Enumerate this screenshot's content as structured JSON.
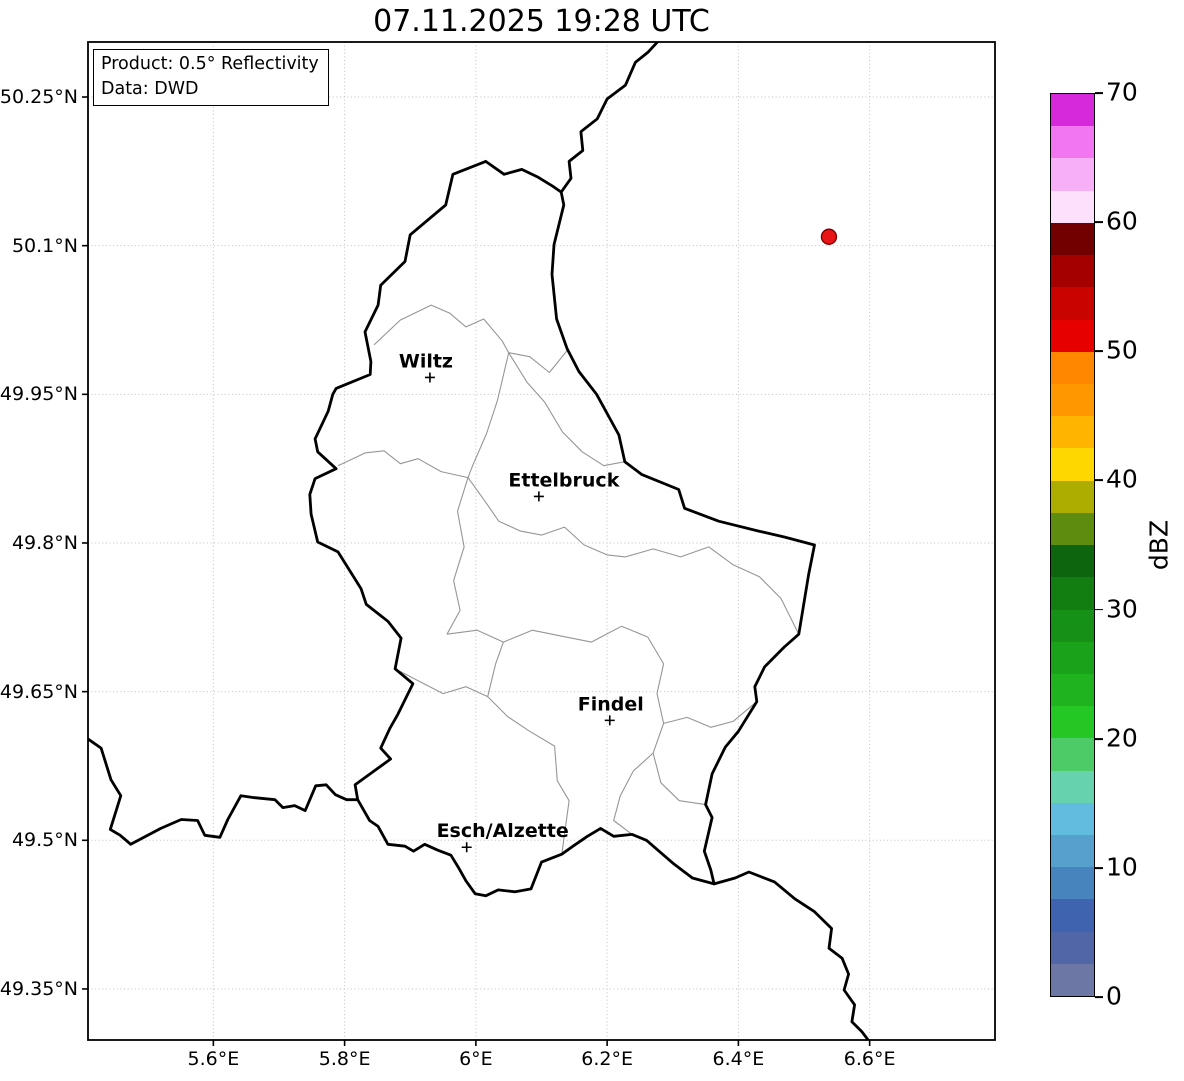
{
  "title": "07.11.2025 19:28 UTC",
  "info_box": {
    "line1": "Product: 0.5° Reflectivity",
    "line2": "Data: DWD"
  },
  "axes": {
    "x_ticks": [
      {
        "value": 5.6,
        "label": "5.6°E"
      },
      {
        "value": 5.8,
        "label": "5.8°E"
      },
      {
        "value": 6.0,
        "label": "6°E"
      },
      {
        "value": 6.2,
        "label": "6.2°E"
      },
      {
        "value": 6.4,
        "label": "6.4°E"
      },
      {
        "value": 6.6,
        "label": "6.6°E"
      }
    ],
    "y_ticks": [
      {
        "value": 50.25,
        "label": "50.25°N"
      },
      {
        "value": 50.1,
        "label": "50.1°N"
      },
      {
        "value": 49.95,
        "label": "49.95°N"
      },
      {
        "value": 49.8,
        "label": "49.8°N"
      },
      {
        "value": 49.65,
        "label": "49.65°N"
      },
      {
        "value": 49.5,
        "label": "49.5°N"
      },
      {
        "value": 49.35,
        "label": "49.35°N"
      }
    ]
  },
  "map": {
    "extent": {
      "lon_min": 5.409,
      "lon_max": 6.791,
      "lat_min": 49.2985,
      "lat_max": 50.3055
    },
    "grid_color": "#c0c0c0",
    "country_border_color": "#000000",
    "district_border_color": "#969696",
    "thick_borders": [
      [
        [
          6.015,
          50.185
        ],
        [
          6.043,
          50.172
        ],
        [
          6.07,
          50.177
        ],
        [
          6.095,
          50.169
        ],
        [
          6.117,
          50.16
        ],
        [
          6.13,
          50.154
        ],
        [
          6.134,
          50.141
        ],
        [
          6.119,
          50.101
        ],
        [
          6.116,
          50.071
        ],
        [
          6.123,
          50.026
        ],
        [
          6.139,
          49.996
        ],
        [
          6.157,
          49.973
        ],
        [
          6.184,
          49.95
        ],
        [
          6.218,
          49.909
        ],
        [
          6.227,
          49.882
        ],
        [
          6.253,
          49.869
        ],
        [
          6.309,
          49.854
        ],
        [
          6.318,
          49.835
        ],
        [
          6.37,
          49.822
        ],
        [
          6.431,
          49.812
        ],
        [
          6.47,
          49.806
        ],
        [
          6.516,
          49.798
        ],
        [
          6.507,
          49.768
        ],
        [
          6.492,
          49.708
        ],
        [
          6.47,
          49.695
        ],
        [
          6.44,
          49.675
        ],
        [
          6.425,
          49.655
        ],
        [
          6.428,
          49.64
        ],
        [
          6.4,
          49.61
        ],
        [
          6.38,
          49.594
        ],
        [
          6.36,
          49.567
        ],
        [
          6.35,
          49.536
        ],
        [
          6.36,
          49.523
        ],
        [
          6.348,
          49.489
        ],
        [
          6.358,
          49.47
        ],
        [
          6.363,
          49.456
        ],
        [
          6.33,
          49.462
        ],
        [
          6.3,
          49.477
        ],
        [
          6.26,
          49.5
        ],
        [
          6.238,
          49.506
        ],
        [
          6.21,
          49.504
        ],
        [
          6.19,
          49.512
        ],
        [
          6.17,
          49.504
        ],
        [
          6.148,
          49.494
        ],
        [
          6.131,
          49.486
        ],
        [
          6.1,
          49.478
        ],
        [
          6.084,
          49.451
        ],
        [
          6.06,
          49.448
        ],
        [
          6.034,
          49.45
        ],
        [
          6.015,
          49.444
        ],
        [
          5.999,
          49.446
        ],
        [
          5.985,
          49.459
        ],
        [
          5.973,
          49.473
        ],
        [
          5.962,
          49.485
        ],
        [
          5.942,
          49.49
        ],
        [
          5.922,
          49.496
        ],
        [
          5.905,
          49.489
        ],
        [
          5.892,
          49.494
        ],
        [
          5.866,
          49.496
        ],
        [
          5.851,
          49.514
        ],
        [
          5.838,
          49.52
        ],
        [
          5.82,
          49.541
        ],
        [
          5.816,
          49.556
        ],
        [
          5.87,
          49.582
        ],
        [
          5.855,
          49.593
        ],
        [
          5.869,
          49.613
        ],
        [
          5.881,
          49.627
        ],
        [
          5.904,
          49.658
        ],
        [
          5.877,
          49.673
        ],
        [
          5.886,
          49.704
        ],
        [
          5.866,
          49.721
        ],
        [
          5.833,
          49.738
        ],
        [
          5.825,
          49.754
        ],
        [
          5.79,
          49.791
        ],
        [
          5.759,
          49.801
        ],
        [
          5.749,
          49.829
        ],
        [
          5.747,
          49.849
        ],
        [
          5.755,
          49.865
        ],
        [
          5.787,
          49.875
        ],
        [
          5.759,
          49.892
        ],
        [
          5.755,
          49.905
        ],
        [
          5.775,
          49.933
        ],
        [
          5.782,
          49.95
        ],
        [
          5.787,
          49.956
        ],
        [
          5.839,
          49.97
        ],
        [
          5.84,
          49.983
        ],
        [
          5.831,
          50.013
        ],
        [
          5.851,
          50.04
        ],
        [
          5.855,
          50.06
        ],
        [
          5.892,
          50.084
        ],
        [
          5.9,
          50.111
        ],
        [
          5.954,
          50.141
        ],
        [
          5.965,
          50.172
        ],
        [
          6.015,
          50.185
        ]
      ],
      [
        [
          6.13,
          50.154
        ],
        [
          6.145,
          50.168
        ],
        [
          6.142,
          50.185
        ],
        [
          6.163,
          50.196
        ],
        [
          6.16,
          50.215
        ],
        [
          6.185,
          50.228
        ],
        [
          6.2,
          50.248
        ],
        [
          6.228,
          50.262
        ],
        [
          6.243,
          50.285
        ],
        [
          6.262,
          50.295
        ],
        [
          6.283,
          50.31
        ]
      ],
      [
        [
          6.363,
          49.456
        ],
        [
          6.395,
          49.462
        ],
        [
          6.416,
          49.468
        ],
        [
          6.455,
          49.458
        ],
        [
          6.486,
          49.441
        ],
        [
          6.516,
          49.428
        ],
        [
          6.542,
          49.411
        ],
        [
          6.538,
          49.391
        ],
        [
          6.558,
          49.381
        ],
        [
          6.568,
          49.365
        ],
        [
          6.561,
          49.349
        ],
        [
          6.577,
          49.334
        ],
        [
          6.573,
          49.317
        ],
        [
          6.588,
          49.307
        ],
        [
          6.603,
          49.294
        ]
      ],
      [
        [
          5.405,
          49.604
        ],
        [
          5.429,
          49.593
        ],
        [
          5.444,
          49.561
        ],
        [
          5.459,
          49.545
        ],
        [
          5.443,
          49.511
        ],
        [
          5.458,
          49.505
        ],
        [
          5.474,
          49.496
        ],
        [
          5.52,
          49.512
        ],
        [
          5.551,
          49.521
        ],
        [
          5.576,
          49.52
        ],
        [
          5.587,
          49.505
        ],
        [
          5.61,
          49.503
        ],
        [
          5.622,
          49.521
        ],
        [
          5.642,
          49.545
        ],
        [
          5.663,
          49.543
        ],
        [
          5.694,
          49.541
        ],
        [
          5.706,
          49.533
        ],
        [
          5.724,
          49.535
        ],
        [
          5.74,
          49.53
        ],
        [
          5.756,
          49.555
        ],
        [
          5.772,
          49.556
        ],
        [
          5.786,
          49.546
        ],
        [
          5.803,
          49.541
        ],
        [
          5.82,
          49.541
        ]
      ]
    ],
    "thin_borders": [
      [
        [
          5.845,
          50.0
        ],
        [
          5.885,
          50.025
        ],
        [
          5.932,
          50.04
        ],
        [
          5.96,
          50.032
        ],
        [
          5.985,
          50.018
        ],
        [
          6.012,
          50.026
        ],
        [
          6.04,
          50.004
        ],
        [
          6.05,
          49.992
        ]
      ],
      [
        [
          6.05,
          49.992
        ],
        [
          6.082,
          49.988
        ],
        [
          6.112,
          49.972
        ],
        [
          6.14,
          49.995
        ]
      ],
      [
        [
          6.05,
          49.992
        ],
        [
          6.033,
          49.944
        ],
        [
          6.016,
          49.91
        ],
        [
          5.995,
          49.878
        ],
        [
          5.988,
          49.866
        ]
      ],
      [
        [
          5.79,
          49.878
        ],
        [
          5.832,
          49.891
        ],
        [
          5.86,
          49.893
        ],
        [
          5.885,
          49.88
        ],
        [
          5.912,
          49.885
        ],
        [
          5.947,
          49.872
        ],
        [
          5.988,
          49.866
        ]
      ],
      [
        [
          6.05,
          49.992
        ],
        [
          6.078,
          49.962
        ],
        [
          6.105,
          49.942
        ],
        [
          6.132,
          49.912
        ],
        [
          6.162,
          49.892
        ],
        [
          6.195,
          49.878
        ],
        [
          6.227,
          49.882
        ]
      ],
      [
        [
          5.988,
          49.866
        ],
        [
          6.012,
          49.844
        ],
        [
          6.035,
          49.822
        ],
        [
          6.068,
          49.812
        ],
        [
          6.1,
          49.808
        ],
        [
          6.135,
          49.816
        ],
        [
          6.165,
          49.798
        ],
        [
          6.2,
          49.788
        ],
        [
          6.228,
          49.786
        ]
      ],
      [
        [
          6.228,
          49.786
        ],
        [
          6.27,
          49.794
        ],
        [
          6.312,
          49.786
        ],
        [
          6.355,
          49.796
        ],
        [
          6.392,
          49.778
        ],
        [
          6.432,
          49.766
        ],
        [
          6.465,
          49.744
        ],
        [
          6.492,
          49.708
        ]
      ],
      [
        [
          5.988,
          49.866
        ],
        [
          5.972,
          49.832
        ],
        [
          5.982,
          49.796
        ],
        [
          5.966,
          49.762
        ],
        [
          5.976,
          49.732
        ],
        [
          5.956,
          49.708
        ]
      ],
      [
        [
          5.956,
          49.708
        ],
        [
          6.002,
          49.712
        ],
        [
          6.042,
          49.7
        ],
        [
          6.086,
          49.712
        ],
        [
          6.13,
          49.706
        ],
        [
          6.176,
          49.7
        ],
        [
          6.222,
          49.716
        ],
        [
          6.262,
          49.705
        ]
      ],
      [
        [
          6.262,
          49.705
        ],
        [
          6.286,
          49.678
        ],
        [
          6.276,
          49.648
        ],
        [
          6.286,
          49.618
        ],
        [
          6.27,
          49.588
        ],
        [
          6.282,
          49.558
        ],
        [
          6.31,
          49.54
        ],
        [
          6.35,
          49.536
        ]
      ],
      [
        [
          6.286,
          49.618
        ],
        [
          6.322,
          49.624
        ],
        [
          6.358,
          49.614
        ],
        [
          6.392,
          49.62
        ],
        [
          6.428,
          49.64
        ]
      ],
      [
        [
          5.877,
          49.673
        ],
        [
          5.915,
          49.66
        ],
        [
          5.95,
          49.648
        ],
        [
          5.985,
          49.655
        ],
        [
          6.018,
          49.645
        ],
        [
          6.048,
          49.625
        ],
        [
          6.082,
          49.61
        ],
        [
          6.12,
          49.595
        ],
        [
          6.124,
          49.56
        ],
        [
          6.142,
          49.54
        ],
        [
          6.131,
          49.486
        ]
      ],
      [
        [
          6.018,
          49.645
        ],
        [
          6.03,
          49.678
        ],
        [
          6.042,
          49.7
        ]
      ],
      [
        [
          6.27,
          49.588
        ],
        [
          6.24,
          49.57
        ],
        [
          6.22,
          49.545
        ],
        [
          6.21,
          49.52
        ],
        [
          6.238,
          49.506
        ]
      ]
    ],
    "cities": [
      {
        "name": "Wiltz",
        "lon": 5.93,
        "lat": 49.967,
        "label_dx": -4
      },
      {
        "name": "Ettelbruck",
        "lon": 6.096,
        "lat": 49.847,
        "label_dx": 25
      },
      {
        "name": "Findel",
        "lon": 6.204,
        "lat": 49.621,
        "label_dx": 1
      },
      {
        "name": "Esch/Alzette",
        "lon": 5.986,
        "lat": 49.493,
        "label_dx": 36
      }
    ],
    "radar_point": {
      "lon": 6.538,
      "lat": 50.109,
      "fill": "#e81416",
      "edge": "#7f0000"
    }
  },
  "colorbar": {
    "label": "dBZ",
    "min": 0,
    "max": 70,
    "ticks": [
      0,
      10,
      20,
      30,
      40,
      50,
      60,
      70
    ],
    "segment_colors_low_to_high": [
      "#6C77A6",
      "#5066A6",
      "#3F63AE",
      "#4783BC",
      "#55A0CC",
      "#62BCDF",
      "#66D3AE",
      "#4DCB66",
      "#24C724",
      "#1FB41F",
      "#1AA21A",
      "#169016",
      "#127E12",
      "#0D660D",
      "#5E8C0E",
      "#ADAD00",
      "#FFD700",
      "#FFB500",
      "#FF9800",
      "#FF8700",
      "#E60000",
      "#C90400",
      "#A50000",
      "#720000",
      "#FCE0FC",
      "#F7AFF7",
      "#F276F1",
      "#D629DB"
    ]
  }
}
